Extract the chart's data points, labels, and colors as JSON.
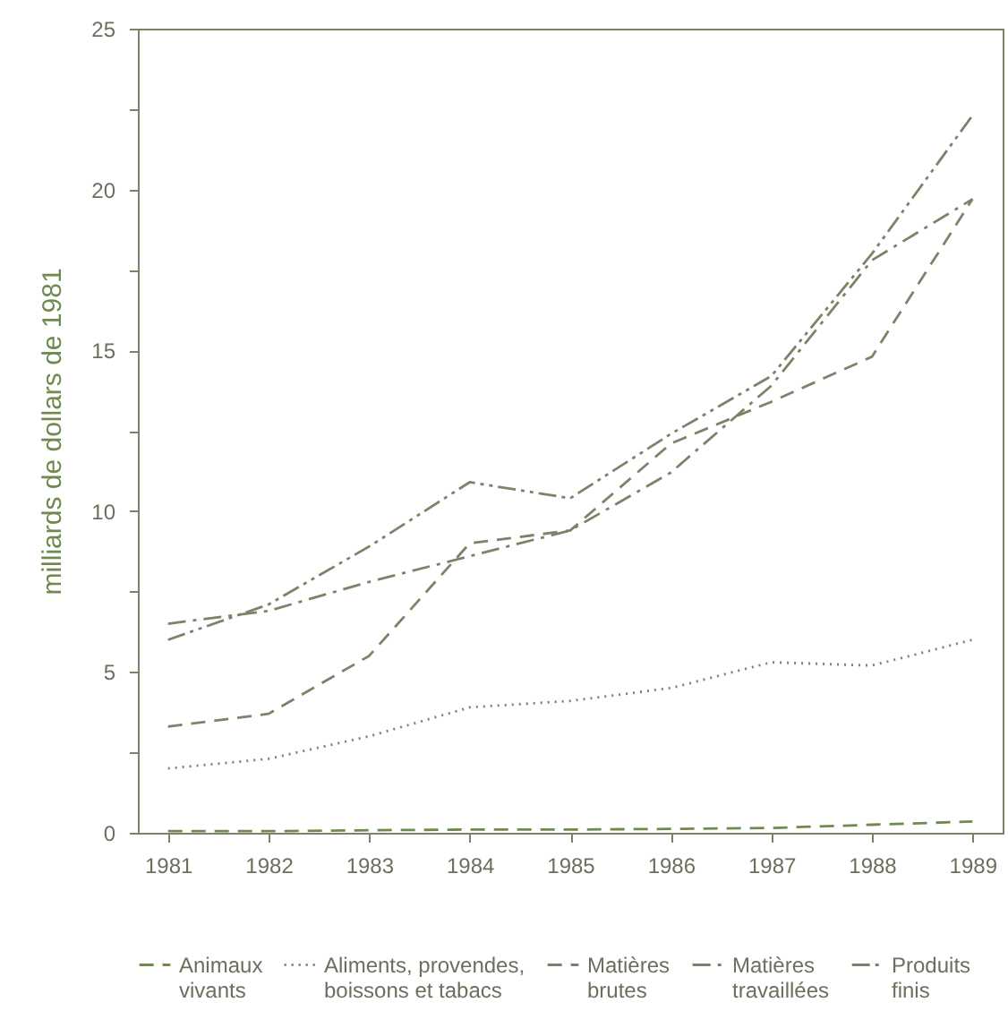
{
  "chart_data": {
    "type": "line",
    "ylabel": "milliards de dollars de 1981",
    "x": [
      1981,
      1982,
      1983,
      1984,
      1985,
      1986,
      1987,
      1988,
      1989
    ],
    "xlim": [
      1980.7,
      1989.3
    ],
    "xticks": [
      1981,
      1982,
      1983,
      1984,
      1985,
      1986,
      1987,
      1988,
      1989
    ],
    "ylim": [
      0,
      25
    ],
    "yticks": [
      0,
      {
        "value": 2.5,
        "label": null
      },
      5,
      {
        "value": 7.5,
        "label": null
      },
      10,
      {
        "value": 12.5,
        "label": null
      },
      15,
      {
        "value": 17.5,
        "label": null
      },
      20,
      {
        "value": 22.5,
        "label": null
      },
      25
    ],
    "grid": false,
    "legend": "bottom",
    "series": [
      {
        "name": "Animaux\nvivants",
        "color": "#6f8a4e",
        "line_style": "dashed",
        "values": [
          0.05,
          0.05,
          0.08,
          0.1,
          0.1,
          0.12,
          0.15,
          0.25,
          0.35
        ]
      },
      {
        "name": "Aliments, provendes,\nboissons et tabacs",
        "color": "#7d8268",
        "line_style": "dotted",
        "values": [
          2.0,
          2.3,
          3.0,
          3.9,
          4.1,
          4.5,
          5.3,
          5.2,
          6.0
        ]
      },
      {
        "name": "Matières\nbrutes",
        "color": "#7d8268",
        "line_style": "dashed",
        "values": [
          3.3,
          3.7,
          5.5,
          9.0,
          9.4,
          12.1,
          13.4,
          14.8,
          19.7
        ]
      },
      {
        "name": "Matières\ntravaillées",
        "color": "#7d8268",
        "line_style": "dashdot",
        "values": [
          6.5,
          6.9,
          7.8,
          8.6,
          9.4,
          11.2,
          13.9,
          17.8,
          19.7
        ]
      },
      {
        "name": "Produits\nfinis",
        "color": "#7d8268",
        "line_style": "dashdotdot",
        "values": [
          6.0,
          7.1,
          8.9,
          10.9,
          10.4,
          12.4,
          14.2,
          18.0,
          22.3
        ]
      }
    ]
  }
}
